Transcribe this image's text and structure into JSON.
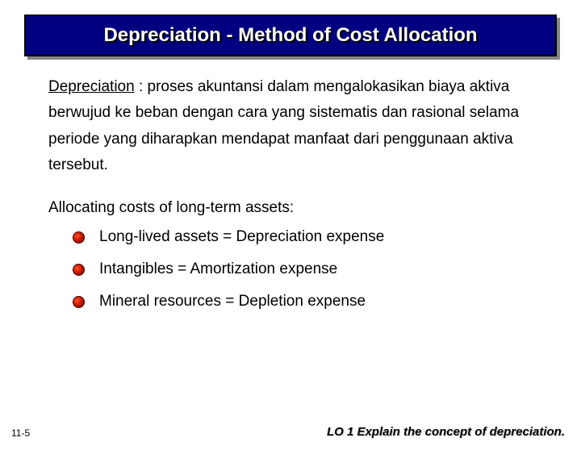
{
  "title": "Depreciation - Method of Cost Allocation",
  "definition": {
    "term": "Depreciation",
    "text": " : proses akuntansi dalam mengalokasikan biaya aktiva berwujud ke beban dengan cara yang sistematis dan rasional selama periode yang diharapkan mendapat manfaat dari penggunaan aktiva tersebut."
  },
  "subheading": "Allocating costs of long-term assets:",
  "bullets": [
    "Long-lived assets  =  Depreciation expense",
    "Intangibles  =  Amortization expense",
    "Mineral resources  =  Depletion expense"
  ],
  "pageNumber": "11-5",
  "learningObjective": "LO 1  Explain the concept of depreciation.",
  "colors": {
    "titleBg": "#000080",
    "titleText": "#ffffff",
    "bodyText": "#000000",
    "bulletFill": "#d02000"
  }
}
